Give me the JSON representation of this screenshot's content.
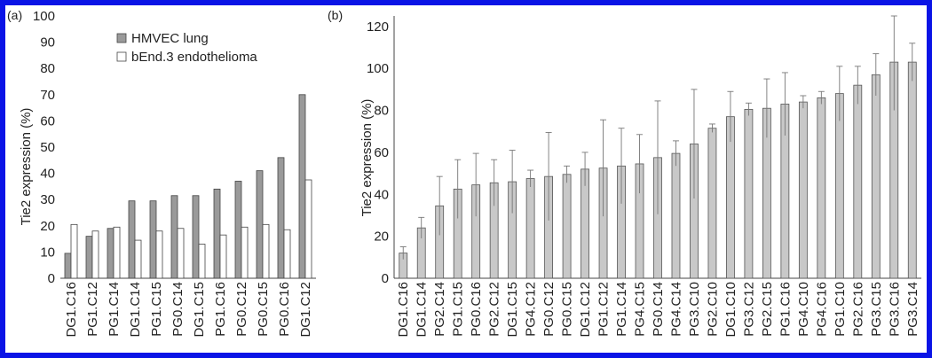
{
  "chart_data": [
    {
      "panel_label": "(a)",
      "type": "bar",
      "ylabel": "Tie2 expression (%)",
      "ylim": [
        0,
        100
      ],
      "yticks": [
        0,
        10,
        20,
        30,
        40,
        50,
        60,
        70,
        80,
        90,
        100
      ],
      "categories": [
        "DG1.C16",
        "PG1.C12",
        "PG1.C14",
        "DG1.C14",
        "PG1.C15",
        "PG0.C14",
        "DG1.C15",
        "PG1.C16",
        "PG0.C12",
        "PG0.C15",
        "PG0.C16",
        "DG1.C12"
      ],
      "legend_position": "top-left",
      "series": [
        {
          "name": "HMVEC lung",
          "color": "#9a9a9a",
          "values": [
            9.5,
            16,
            19,
            29.5,
            29.5,
            31.5,
            31.5,
            34,
            37,
            41,
            46,
            70
          ]
        },
        {
          "name": "bEnd.3 endothelioma",
          "color": "#ffffff",
          "values": [
            20.5,
            18,
            19.5,
            14.5,
            18,
            19,
            13,
            16.5,
            19.5,
            20.5,
            18.5,
            37.5
          ]
        }
      ]
    },
    {
      "panel_label": "(b)",
      "type": "bar",
      "ylabel": "Tie2 expression (%)",
      "ylim": [
        0,
        125
      ],
      "yticks": [
        0,
        20,
        40,
        60,
        80,
        100,
        120
      ],
      "categories": [
        "DG1.C16",
        "DG1.C14",
        "PG2.C14",
        "PG1.C15",
        "PG0.C16",
        "PG2.C12",
        "DG1.C15",
        "PG4.C12",
        "PG0.C12",
        "PG0.C15",
        "DG1.C12",
        "PG1.C12",
        "PG1.C14",
        "PG4.C15",
        "PG0.C14",
        "PG4.C14",
        "PG3.C10",
        "PG2.C10",
        "DG1.C10",
        "PG3.C12",
        "PG2.C15",
        "PG1.C16",
        "PG4.C10",
        "PG4.C16",
        "PG1.C10",
        "PG2.C16",
        "PG3.C15",
        "PG3.C16",
        "PG3.C14"
      ],
      "series": [
        {
          "color": "#c8c8c8",
          "values": [
            12,
            24,
            34.5,
            42.5,
            44.5,
            45.5,
            46,
            47.5,
            48.5,
            49.5,
            52,
            52.5,
            53.5,
            54.5,
            57.5,
            59.5,
            64,
            71.5,
            77,
            80.5,
            81,
            83,
            84,
            86,
            88,
            92,
            97,
            103,
            103
          ],
          "error": [
            3,
            5,
            14,
            14,
            15,
            11,
            15,
            4,
            21,
            4,
            8,
            23,
            18,
            14,
            27,
            6,
            26,
            2,
            12,
            3,
            14,
            15,
            3,
            3,
            13,
            9,
            10,
            23,
            9
          ]
        }
      ]
    }
  ]
}
